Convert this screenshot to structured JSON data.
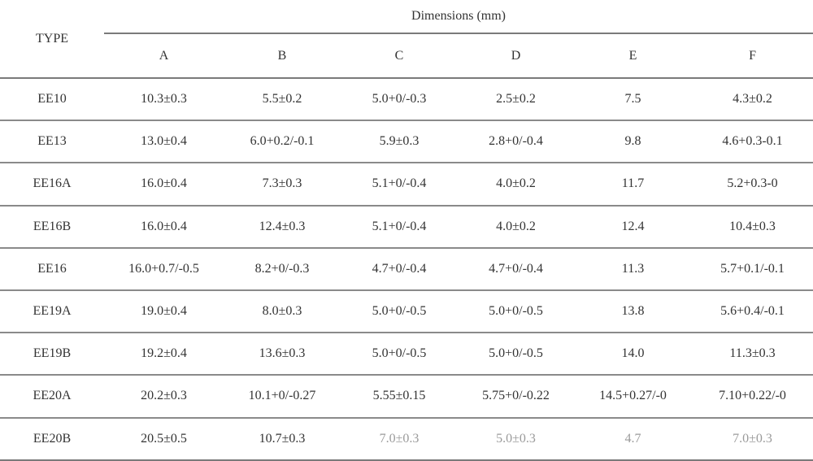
{
  "table": {
    "type_header": "TYPE",
    "group_header": "Dimensions (mm)",
    "columns": [
      "A",
      "B",
      "C",
      "D",
      "E",
      "F"
    ],
    "rows": [
      {
        "type": "EE10",
        "values": [
          "10.3±0.3",
          "5.5±0.2",
          "5.0+0/-0.3",
          "2.5±0.2",
          "7.5",
          "4.3±0.2"
        ]
      },
      {
        "type": "EE13",
        "values": [
          "13.0±0.4",
          "6.0+0.2/-0.1",
          "5.9±0.3",
          "2.8+0/-0.4",
          "9.8",
          "4.6+0.3-0.1"
        ]
      },
      {
        "type": "EE16A",
        "values": [
          "16.0±0.4",
          "7.3±0.3",
          "5.1+0/-0.4",
          "4.0±0.2",
          "11.7",
          "5.2+0.3-0"
        ]
      },
      {
        "type": "EE16B",
        "values": [
          "16.0±0.4",
          "12.4±0.3",
          "5.1+0/-0.4",
          "4.0±0.2",
          "12.4",
          "10.4±0.3"
        ]
      },
      {
        "type": "EE16",
        "values": [
          "16.0+0.7/-0.5",
          "8.2+0/-0.3",
          "4.7+0/-0.4",
          "4.7+0/-0.4",
          "11.3",
          "5.7+0.1/-0.1"
        ]
      },
      {
        "type": "EE19A",
        "values": [
          "19.0±0.4",
          "8.0±0.3",
          "5.0+0/-0.5",
          "5.0+0/-0.5",
          "13.8",
          "5.6+0.4/-0.1"
        ]
      },
      {
        "type": "EE19B",
        "values": [
          "19.2±0.4",
          "13.6±0.3",
          "5.0+0/-0.5",
          "5.0+0/-0.5",
          "14.0",
          "11.3±0.3"
        ]
      },
      {
        "type": "EE20A",
        "values": [
          "20.2±0.3",
          "10.1+0/-0.27",
          "5.55±0.15",
          "5.75+0/-0.22",
          "14.5+0.27/-0",
          "7.10+0.22/-0"
        ]
      },
      {
        "type": "EE20B",
        "values": [
          "20.5±0.5",
          "10.7±0.3",
          "7.0±0.3",
          "5.0±0.3",
          "4.7",
          "7.0±0.3"
        ]
      }
    ]
  }
}
